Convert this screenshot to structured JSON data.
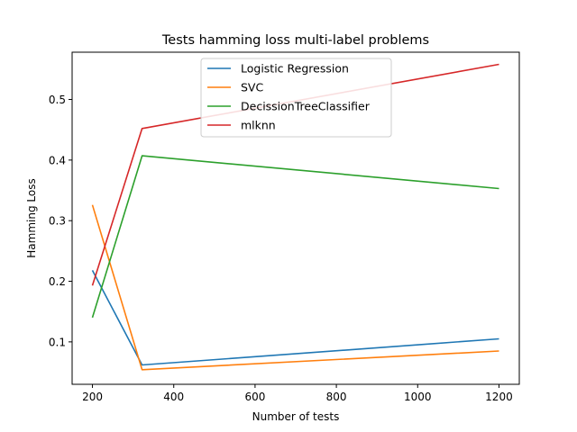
{
  "chart_data": {
    "type": "line",
    "title": "Tests hamming loss multi-label problems",
    "xlabel": "Number of tests",
    "ylabel": "Hamming Loss",
    "xlim": [
      150,
      1250
    ],
    "ylim": [
      0.03,
      0.578
    ],
    "xticks": [
      200,
      400,
      600,
      800,
      1000,
      1200
    ],
    "yticks": [
      0.1,
      0.2,
      0.3,
      0.4,
      0.5
    ],
    "x": [
      200,
      322,
      1200
    ],
    "grid": false,
    "legend_position": "upper center",
    "series": [
      {
        "name": "Logistic Regression",
        "color": "#1f77b4",
        "values": [
          0.218,
          0.062,
          0.105
        ]
      },
      {
        "name": "SVC",
        "color": "#ff7f0e",
        "values": [
          0.326,
          0.054,
          0.085
        ]
      },
      {
        "name": "DecissionTreeClassifier",
        "color": "#2ca02c",
        "values": [
          0.14,
          0.407,
          0.353
        ]
      },
      {
        "name": "mlknn",
        "color": "#d62728",
        "values": [
          0.193,
          0.452,
          0.558
        ]
      }
    ]
  }
}
